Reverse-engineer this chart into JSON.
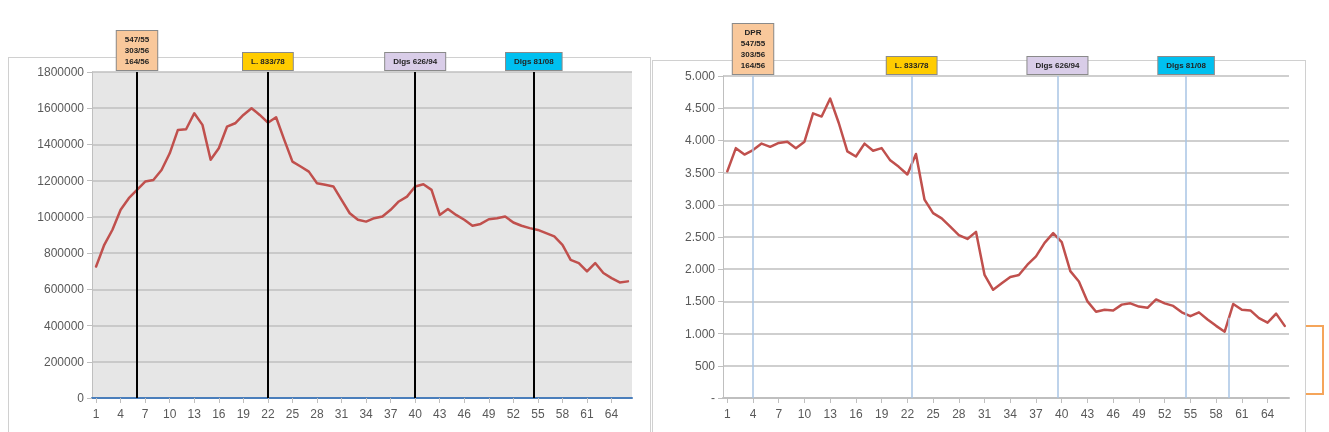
{
  "chart_data": [
    {
      "type": "line",
      "x": [
        1,
        2,
        3,
        4,
        5,
        6,
        7,
        8,
        9,
        10,
        11,
        12,
        13,
        14,
        15,
        16,
        17,
        18,
        19,
        20,
        21,
        22,
        23,
        24,
        25,
        26,
        27,
        28,
        29,
        30,
        31,
        32,
        33,
        34,
        35,
        36,
        37,
        38,
        39,
        40,
        41,
        42,
        43,
        44,
        45,
        46,
        47,
        48,
        49,
        50,
        51,
        52,
        53,
        54,
        55,
        56,
        57,
        58,
        59,
        60,
        61,
        62,
        63,
        64,
        65,
        66
      ],
      "series": [
        {
          "color": "#c0504d",
          "values": [
            726000,
            846000,
            929000,
            1039000,
            1103000,
            1149000,
            1195000,
            1204000,
            1259000,
            1351000,
            1480000,
            1484000,
            1572000,
            1508000,
            1315000,
            1379000,
            1498000,
            1517000,
            1563000,
            1600000,
            1563000,
            1520000,
            1550000,
            1425000,
            1305000,
            1278000,
            1250000,
            1186000,
            1177000,
            1168000,
            1094000,
            1020000,
            984000,
            974000,
            993000,
            1002000,
            1039000,
            1085000,
            1112000,
            1168000,
            1180000,
            1149000,
            1011000,
            1043000,
            1011000,
            984000,
            951000,
            961000,
            987000,
            993000,
            1002000,
            969000,
            951000,
            938000,
            928000,
            910000,
            892000,
            846000,
            763000,
            745000,
            699000,
            745000,
            690000,
            662000,
            638000,
            644000
          ]
        }
      ],
      "xlim": [
        0.5,
        66.5
      ],
      "xticks": [
        1,
        4,
        7,
        10,
        13,
        16,
        19,
        22,
        25,
        28,
        31,
        34,
        37,
        40,
        43,
        46,
        49,
        52,
        55,
        58,
        61,
        64
      ],
      "ylim": [
        0,
        1800000
      ],
      "yticks": [
        0,
        200000,
        400000,
        600000,
        800000,
        1000000,
        1200000,
        1400000,
        1600000,
        1800000
      ],
      "grid": "y",
      "marker": "none",
      "ref_lines": [
        {
          "axis": "x",
          "value": 6,
          "label": null,
          "color": "#000000"
        },
        {
          "axis": "x",
          "value": 22,
          "label": "L. 833/78",
          "color": "#000000"
        },
        {
          "axis": "x",
          "value": 40,
          "label": "Dlgs 626/94",
          "color": "#000000"
        },
        {
          "axis": "x",
          "value": 54.5,
          "label": "Dlgs 81/08",
          "color": "#000000"
        }
      ],
      "annotations": [
        "547/55\n303/56\n164/56"
      ]
    },
    {
      "type": "line",
      "x": [
        1,
        2,
        3,
        4,
        5,
        6,
        7,
        8,
        9,
        10,
        11,
        12,
        13,
        14,
        15,
        16,
        17,
        18,
        19,
        20,
        21,
        22,
        23,
        24,
        25,
        26,
        27,
        28,
        29,
        30,
        31,
        32,
        33,
        34,
        35,
        36,
        37,
        38,
        39,
        40,
        41,
        42,
        43,
        44,
        45,
        46,
        47,
        48,
        49,
        50,
        51,
        52,
        53,
        54,
        55,
        56,
        57,
        58,
        59,
        60,
        61,
        62,
        63,
        64,
        65,
        66
      ],
      "series": [
        {
          "color": "#c0504d",
          "values": [
            3520,
            3880,
            3780,
            3850,
            3950,
            3900,
            3960,
            3980,
            3880,
            3980,
            4420,
            4370,
            4650,
            4270,
            3830,
            3750,
            3950,
            3840,
            3880,
            3690,
            3590,
            3470,
            3790,
            3080,
            2870,
            2790,
            2660,
            2530,
            2470,
            2580,
            1910,
            1680,
            1780,
            1880,
            1910,
            2070,
            2200,
            2410,
            2560,
            2420,
            1970,
            1810,
            1500,
            1340,
            1370,
            1360,
            1450,
            1470,
            1420,
            1400,
            1530,
            1470,
            1430,
            1330,
            1270,
            1330,
            1220,
            1120,
            1030,
            1460,
            1370,
            1360,
            1240,
            1170,
            1310,
            1120
          ]
        }
      ],
      "xlim": [
        0.5,
        66.5
      ],
      "xticks": [
        1,
        4,
        7,
        10,
        13,
        16,
        19,
        22,
        25,
        28,
        31,
        34,
        37,
        40,
        43,
        46,
        49,
        52,
        55,
        58,
        61,
        64
      ],
      "ylim": [
        0,
        5000
      ],
      "yticks": [
        {
          "value": 0,
          "label": "-"
        },
        500,
        {
          "value": 1000,
          "label": "1.000"
        },
        {
          "value": 1500,
          "label": "1.500"
        },
        {
          "value": 2000,
          "label": "2.000"
        },
        {
          "value": 2500,
          "label": "2.500"
        },
        {
          "value": 3000,
          "label": "3.000"
        },
        {
          "value": 3500,
          "label": "3.500"
        },
        {
          "value": 4000,
          "label": "4.000"
        },
        {
          "value": 4500,
          "label": "4.500"
        },
        {
          "value": 5000,
          "label": "5.000"
        }
      ],
      "grid": "y",
      "marker": "none",
      "ref_lines": [
        {
          "axis": "x",
          "value": 4,
          "label": "DPR\n547/55\n303/56\n164/56",
          "color": "#a9c4e4"
        },
        {
          "axis": "x",
          "value": 22.5,
          "label": "L. 833/78",
          "color": "#a9c4e4"
        },
        {
          "axis": "x",
          "value": 39.5,
          "label": "Dlgs 626/94",
          "color": "#a9c4e4"
        },
        {
          "axis": "x",
          "value": 54.5,
          "label": "Dlgs 81/08",
          "color": "#a9c4e4"
        },
        {
          "axis": "x",
          "value": 59.5,
          "label": null,
          "color": "#a9c4e4"
        }
      ]
    }
  ]
}
